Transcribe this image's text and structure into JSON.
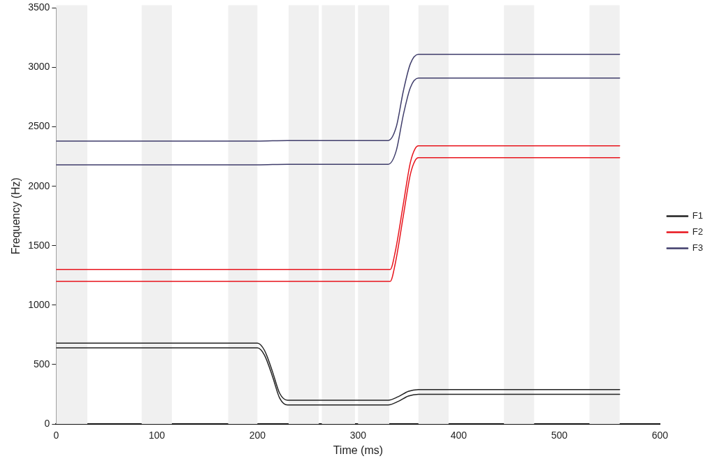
{
  "chart_data": {
    "type": "line",
    "xlabel": "Time (ms)",
    "ylabel": "Frequency (Hz)",
    "xlim": [
      0,
      600
    ],
    "xticks": [
      0,
      100,
      200,
      300,
      400,
      500,
      600
    ],
    "ylim": [
      0,
      3500
    ],
    "yticks": [
      0,
      500,
      1000,
      1500,
      2000,
      2500,
      3000,
      3500
    ],
    "grid": false,
    "legend": "right",
    "marker": "none",
    "line_style": "solid",
    "bands": [
      {
        "axis": "x",
        "from": 0,
        "to": 31,
        "color": "#f0f0f0"
      },
      {
        "axis": "x",
        "from": 85,
        "to": 115,
        "color": "#f0f0f0"
      },
      {
        "axis": "x",
        "from": 171,
        "to": 200,
        "color": "#f0f0f0"
      },
      {
        "axis": "x",
        "from": 231,
        "to": 261,
        "color": "#f0f0f0"
      },
      {
        "axis": "x",
        "from": 264,
        "to": 297,
        "color": "#f0f0f0"
      },
      {
        "axis": "x",
        "from": 300,
        "to": 331,
        "color": "#f0f0f0"
      },
      {
        "axis": "x",
        "from": 360,
        "to": 390,
        "color": "#f0f0f0"
      },
      {
        "axis": "x",
        "from": 445,
        "to": 475,
        "color": "#f0f0f0"
      },
      {
        "axis": "x",
        "from": 530,
        "to": 560,
        "color": "#f0f0f0"
      }
    ],
    "series": [
      {
        "name": "F1",
        "color": "#222222",
        "x": [
          0,
          200,
          207,
          215,
          222,
          230,
          330,
          340,
          350,
          360,
          560
        ],
        "values": [
          680,
          680,
          620,
          440,
          260,
          200,
          200,
          230,
          275,
          290,
          290
        ]
      },
      {
        "color": "#222222",
        "x": [
          0,
          200,
          207,
          215,
          222,
          230,
          330,
          340,
          350,
          360,
          560
        ],
        "values": [
          640,
          640,
          580,
          400,
          220,
          160,
          160,
          190,
          235,
          250,
          250
        ]
      },
      {
        "name": "F2",
        "color": "#e8141c",
        "x": [
          0,
          332,
          337,
          345,
          352,
          357,
          360,
          560
        ],
        "values": [
          1300,
          1300,
          1450,
          1850,
          2200,
          2320,
          2340,
          2340
        ]
      },
      {
        "color": "#e8141c",
        "x": [
          0,
          332,
          337,
          345,
          352,
          357,
          360,
          560
        ],
        "values": [
          1200,
          1200,
          1350,
          1750,
          2100,
          2220,
          2240,
          2240
        ]
      },
      {
        "name": "F3",
        "color": "#3f3d6b",
        "x": [
          0,
          200,
          230,
          330,
          338,
          345,
          352,
          360,
          560
        ],
        "values": [
          2380,
          2380,
          2385,
          2385,
          2500,
          2800,
          3030,
          3110,
          3110
        ]
      },
      {
        "color": "#3f3d6b",
        "x": [
          0,
          200,
          230,
          330,
          338,
          345,
          352,
          360,
          560
        ],
        "values": [
          2180,
          2180,
          2185,
          2185,
          2300,
          2600,
          2830,
          2910,
          2910
        ]
      }
    ]
  }
}
